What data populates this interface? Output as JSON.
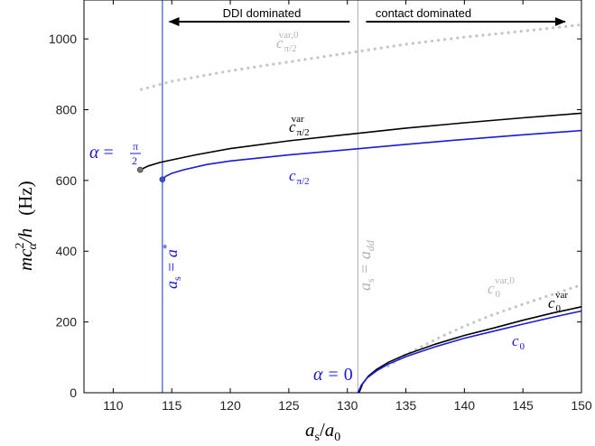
{
  "chart_data": {
    "type": "line",
    "xlabel": "a_s/a_0",
    "ylabel": "m c_α² / h (Hz)",
    "xlim": [
      107.5,
      150
    ],
    "ylim": [
      0,
      1110
    ],
    "xticks": [
      110,
      115,
      120,
      125,
      130,
      135,
      140,
      145,
      150
    ],
    "yticks": [
      0,
      200,
      400,
      600,
      800,
      1000
    ],
    "grid": false,
    "series": [
      {
        "name": "c_{π/2}^{var,0}",
        "style": "dotted",
        "color": "#c6c6c6",
        "x": [
          112.4,
          115,
          120,
          125,
          130,
          135,
          140,
          145,
          150
        ],
        "y": [
          857,
          880,
          910,
          935,
          960,
          985,
          1005,
          1022,
          1040
        ]
      },
      {
        "name": "c_{π/2}^{var}",
        "style": "solid",
        "color": "#000000",
        "x": [
          112.3,
          113,
          114,
          115,
          117,
          120,
          125,
          130,
          135,
          140,
          145,
          150
        ],
        "y": [
          630,
          641,
          651,
          658,
          672,
          690,
          712,
          730,
          748,
          763,
          777,
          790
        ]
      },
      {
        "name": "c_{π/2}",
        "style": "solid",
        "color": "#1a1ad8",
        "x": [
          114.2,
          114.5,
          115,
          116,
          118,
          120,
          125,
          130,
          135,
          140,
          145,
          150
        ],
        "y": [
          603,
          612,
          620,
          630,
          645,
          655,
          672,
          687,
          702,
          716,
          729,
          741
        ]
      },
      {
        "name": "c_0^{var,0}",
        "style": "dotted",
        "color": "#c6c6c6",
        "x": [
          133.5,
          135,
          138,
          140,
          142,
          145,
          148,
          150
        ],
        "y": [
          75,
          108,
          158,
          188,
          215,
          250,
          283,
          305
        ]
      },
      {
        "name": "c_0^{var}",
        "style": "solid",
        "color": "#000000",
        "x": [
          131,
          131.3,
          131.8,
          132.5,
          133.5,
          135,
          137.5,
          140,
          142.5,
          145,
          147.5,
          150
        ],
        "y": [
          0,
          25,
          47,
          66,
          86,
          108,
          137,
          162,
          183,
          205,
          225,
          243
        ]
      },
      {
        "name": "c_0",
        "style": "solid",
        "color": "#1a1ad8",
        "x": [
          130.9,
          131.2,
          131.7,
          132.5,
          133.5,
          135,
          137.5,
          140,
          142.5,
          145,
          147.5,
          150
        ],
        "y": [
          0,
          22,
          42,
          62,
          81,
          102,
          130,
          154,
          174,
          194,
          213,
          231
        ]
      }
    ],
    "vlines": [
      {
        "x": 114.2,
        "color": "#3a4fe0"
      },
      {
        "x": 130.9,
        "color": "#b8b8b8"
      }
    ],
    "markers": [
      {
        "x": 112.3,
        "y": 630,
        "color": "#777777"
      },
      {
        "x": 114.2,
        "y": 603,
        "color": "#3b4fe6"
      }
    ],
    "arrows": [
      {
        "label": "DDI dominated",
        "from": 130.2,
        "to": 114.8
      },
      {
        "label": "contact dominated",
        "from": 131.6,
        "to": 148.6
      }
    ],
    "annotations": {
      "alpha_pi2": "α = π/2",
      "alpha_0": "α = 0",
      "as_astar": "a_s = a*",
      "as_add": "a_s = a_dd"
    }
  },
  "labels": {
    "ddi": "DDI dominated",
    "contact": "contact dominated",
    "xlabel_a": "a",
    "xlabel_s": "s",
    "xlabel_div": "/",
    "xlabel_a0": "a",
    "xlabel_0": "0",
    "ylabel_mc": "mc",
    "ylabel_sq": "2",
    "ylabel_alpha": "α",
    "ylabel_h": "/h",
    "ylabel_unit": "(Hz)",
    "c": "c",
    "var": "var",
    "var0": "var,0",
    "sub_pi2": "π/2",
    "sub_0": "0",
    "alpha": "α",
    "eq": "=",
    "pi": "π",
    "two": "2",
    "zero": "0",
    "as_a": "a",
    "as_s": "s",
    "as_eq": " = a",
    "as_star": "*",
    "add_sub": "dd"
  }
}
